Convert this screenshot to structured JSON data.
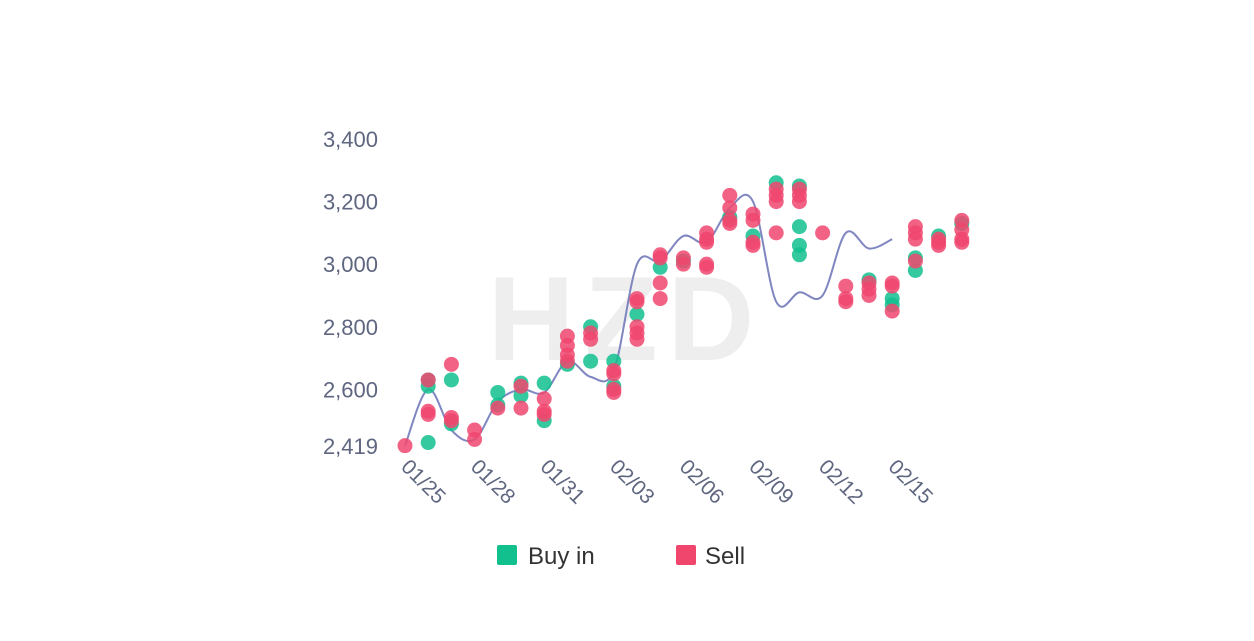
{
  "chart_data": {
    "type": "scatter",
    "title": "",
    "xlabel": "",
    "ylabel": "",
    "watermark": "HZD",
    "ylim": [
      2419,
      3400
    ],
    "y_ticks": [
      2419,
      2600,
      2800,
      3000,
      3200,
      3400
    ],
    "y_tick_labels": [
      "2,419",
      "2,600",
      "2,800",
      "3,000",
      "3,200",
      "3,400"
    ],
    "x_tick_labels": [
      "01/25",
      "01/28",
      "01/31",
      "02/03",
      "02/06",
      "02/09",
      "02/12",
      "02/15"
    ],
    "x_start": "01/25",
    "x_end": "02/16",
    "grid": false,
    "legend_position": "bottom-center",
    "trend_line": [
      {
        "x": "01/25",
        "y": 2420
      },
      {
        "x": "01/26",
        "y": 2600
      },
      {
        "x": "01/27",
        "y": 2470
      },
      {
        "x": "01/28",
        "y": 2440
      },
      {
        "x": "01/29",
        "y": 2560
      },
      {
        "x": "01/30",
        "y": 2600
      },
      {
        "x": "01/31",
        "y": 2590
      },
      {
        "x": "02/01",
        "y": 2690
      },
      {
        "x": "02/02",
        "y": 2640
      },
      {
        "x": "02/03",
        "y": 2660
      },
      {
        "x": "02/04",
        "y": 3000
      },
      {
        "x": "02/05",
        "y": 3010
      },
      {
        "x": "02/06",
        "y": 3090
      },
      {
        "x": "02/07",
        "y": 3070
      },
      {
        "x": "02/08",
        "y": 3180
      },
      {
        "x": "02/09",
        "y": 3200
      },
      {
        "x": "02/10",
        "y": 2880
      },
      {
        "x": "02/11",
        "y": 2910
      },
      {
        "x": "02/12",
        "y": 2900
      },
      {
        "x": "02/13",
        "y": 3100
      },
      {
        "x": "02/14",
        "y": 3050
      },
      {
        "x": "02/15",
        "y": 3080
      }
    ],
    "series": [
      {
        "name": "Buy in",
        "color": "#12c08e",
        "points": [
          {
            "x": "01/26",
            "y": 2630
          },
          {
            "x": "01/26",
            "y": 2610
          },
          {
            "x": "01/26",
            "y": 2430
          },
          {
            "x": "01/27",
            "y": 2630
          },
          {
            "x": "01/27",
            "y": 2490
          },
          {
            "x": "01/29",
            "y": 2590
          },
          {
            "x": "01/29",
            "y": 2550
          },
          {
            "x": "01/30",
            "y": 2620
          },
          {
            "x": "01/30",
            "y": 2580
          },
          {
            "x": "01/31",
            "y": 2620
          },
          {
            "x": "01/31",
            "y": 2500
          },
          {
            "x": "02/01",
            "y": 2680
          },
          {
            "x": "02/02",
            "y": 2800
          },
          {
            "x": "02/02",
            "y": 2690
          },
          {
            "x": "02/03",
            "y": 2690
          },
          {
            "x": "02/03",
            "y": 2610
          },
          {
            "x": "02/04",
            "y": 2840
          },
          {
            "x": "02/05",
            "y": 2990
          },
          {
            "x": "02/06",
            "y": 3010
          },
          {
            "x": "02/08",
            "y": 3150
          },
          {
            "x": "02/09",
            "y": 3090
          },
          {
            "x": "02/10",
            "y": 3260
          },
          {
            "x": "02/11",
            "y": 3250
          },
          {
            "x": "02/11",
            "y": 3120
          },
          {
            "x": "02/11",
            "y": 3060
          },
          {
            "x": "02/11",
            "y": 3030
          },
          {
            "x": "02/14",
            "y": 2950
          },
          {
            "x": "02/15",
            "y": 2890
          },
          {
            "x": "02/15",
            "y": 2870
          },
          {
            "x": "02/16",
            "y": 3020
          },
          {
            "x": "02/16",
            "y": 2980
          },
          {
            "x": "02/17",
            "y": 3090
          },
          {
            "x": "02/18",
            "y": 3130
          }
        ]
      },
      {
        "name": "Sell",
        "color": "#f0466e",
        "points": [
          {
            "x": "01/25",
            "y": 2420
          },
          {
            "x": "01/26",
            "y": 2630
          },
          {
            "x": "01/26",
            "y": 2530
          },
          {
            "x": "01/26",
            "y": 2520
          },
          {
            "x": "01/27",
            "y": 2680
          },
          {
            "x": "01/27",
            "y": 2510
          },
          {
            "x": "01/27",
            "y": 2500
          },
          {
            "x": "01/28",
            "y": 2470
          },
          {
            "x": "01/28",
            "y": 2440
          },
          {
            "x": "01/29",
            "y": 2540
          },
          {
            "x": "01/30",
            "y": 2610
          },
          {
            "x": "01/30",
            "y": 2540
          },
          {
            "x": "01/31",
            "y": 2570
          },
          {
            "x": "01/31",
            "y": 2530
          },
          {
            "x": "01/31",
            "y": 2520
          },
          {
            "x": "02/01",
            "y": 2770
          },
          {
            "x": "02/01",
            "y": 2740
          },
          {
            "x": "02/01",
            "y": 2710
          },
          {
            "x": "02/01",
            "y": 2690
          },
          {
            "x": "02/02",
            "y": 2780
          },
          {
            "x": "02/02",
            "y": 2760
          },
          {
            "x": "02/03",
            "y": 2660
          },
          {
            "x": "02/03",
            "y": 2650
          },
          {
            "x": "02/03",
            "y": 2600
          },
          {
            "x": "02/03",
            "y": 2590
          },
          {
            "x": "02/04",
            "y": 2890
          },
          {
            "x": "02/04",
            "y": 2880
          },
          {
            "x": "02/04",
            "y": 2800
          },
          {
            "x": "02/04",
            "y": 2780
          },
          {
            "x": "02/04",
            "y": 2760
          },
          {
            "x": "02/05",
            "y": 3030
          },
          {
            "x": "02/05",
            "y": 3020
          },
          {
            "x": "02/05",
            "y": 2940
          },
          {
            "x": "02/05",
            "y": 2890
          },
          {
            "x": "02/06",
            "y": 3020
          },
          {
            "x": "02/06",
            "y": 3000
          },
          {
            "x": "02/07",
            "y": 3100
          },
          {
            "x": "02/07",
            "y": 3080
          },
          {
            "x": "02/07",
            "y": 3070
          },
          {
            "x": "02/07",
            "y": 3000
          },
          {
            "x": "02/07",
            "y": 2990
          },
          {
            "x": "02/08",
            "y": 3220
          },
          {
            "x": "02/08",
            "y": 3180
          },
          {
            "x": "02/08",
            "y": 3140
          },
          {
            "x": "02/08",
            "y": 3130
          },
          {
            "x": "02/09",
            "y": 3160
          },
          {
            "x": "02/09",
            "y": 3140
          },
          {
            "x": "02/09",
            "y": 3070
          },
          {
            "x": "02/09",
            "y": 3060
          },
          {
            "x": "02/10",
            "y": 3240
          },
          {
            "x": "02/10",
            "y": 3220
          },
          {
            "x": "02/10",
            "y": 3200
          },
          {
            "x": "02/10",
            "y": 3100
          },
          {
            "x": "02/11",
            "y": 3240
          },
          {
            "x": "02/11",
            "y": 3220
          },
          {
            "x": "02/11",
            "y": 3200
          },
          {
            "x": "02/12",
            "y": 3100
          },
          {
            "x": "02/13",
            "y": 2930
          },
          {
            "x": "02/13",
            "y": 2890
          },
          {
            "x": "02/13",
            "y": 2880
          },
          {
            "x": "02/14",
            "y": 2940
          },
          {
            "x": "02/14",
            "y": 2920
          },
          {
            "x": "02/14",
            "y": 2900
          },
          {
            "x": "02/15",
            "y": 2940
          },
          {
            "x": "02/15",
            "y": 2930
          },
          {
            "x": "02/15",
            "y": 2850
          },
          {
            "x": "02/16",
            "y": 3120
          },
          {
            "x": "02/16",
            "y": 3100
          },
          {
            "x": "02/16",
            "y": 3080
          },
          {
            "x": "02/16",
            "y": 3010
          },
          {
            "x": "02/17",
            "y": 3080
          },
          {
            "x": "02/17",
            "y": 3070
          },
          {
            "x": "02/17",
            "y": 3060
          },
          {
            "x": "02/18",
            "y": 3140
          },
          {
            "x": "02/18",
            "y": 3110
          },
          {
            "x": "02/18",
            "y": 3080
          },
          {
            "x": "02/18",
            "y": 3070
          }
        ]
      }
    ]
  }
}
